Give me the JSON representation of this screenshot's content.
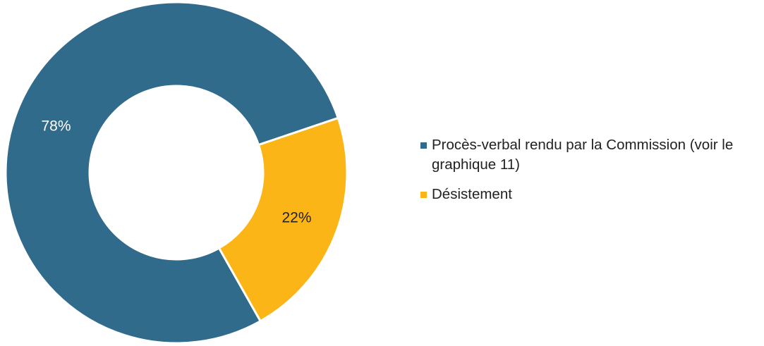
{
  "chart_data": {
    "type": "donut",
    "categories": [
      "Procès-verbal rendu par la Commission (voir le graphique 11)",
      "Désistement"
    ],
    "values": [
      78,
      22
    ],
    "value_labels": [
      "78%",
      "22%"
    ],
    "colors": [
      "#306b8b",
      "#fbb516"
    ],
    "label_colors": [
      "#ffffff",
      "#222222"
    ],
    "legend": "right"
  }
}
